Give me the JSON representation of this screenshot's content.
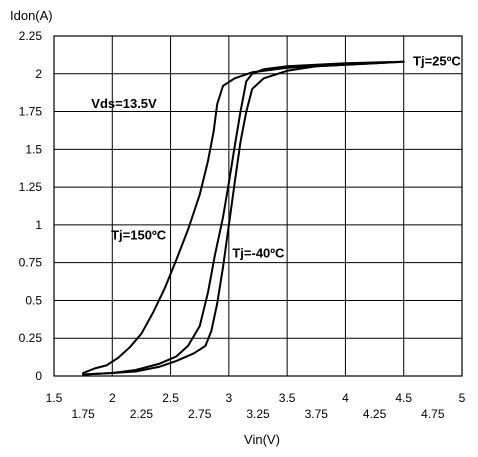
{
  "chart_data": {
    "type": "line",
    "xlabel": "Vin(V)",
    "ylabel": "Idon(A)",
    "xlim": [
      1.5,
      5
    ],
    "ylim": [
      0,
      2.25
    ],
    "x_ticks_upper": [
      "1.5",
      "2",
      "2.5",
      "3",
      "3.5",
      "4",
      "4.5",
      "5"
    ],
    "x_ticks_lower": [
      "1.75",
      "2.25",
      "2.75",
      "3.25",
      "3.75",
      "4.25",
      "4.75"
    ],
    "y_ticks": [
      "0",
      "0.25",
      "0.5",
      "0.75",
      "1",
      "1.25",
      "1.5",
      "1.75",
      "2",
      "2.25"
    ],
    "grid": true,
    "series": [
      {
        "name": "Tj=150ºC",
        "x": [
          1.75,
          1.85,
          1.95,
          2.05,
          2.15,
          2.25,
          2.35,
          2.45,
          2.55,
          2.65,
          2.75,
          2.82,
          2.87,
          2.9,
          2.95,
          3.05,
          3.2,
          3.5,
          4.0,
          4.5
        ],
        "y": [
          0.02,
          0.05,
          0.07,
          0.12,
          0.19,
          0.28,
          0.42,
          0.58,
          0.77,
          0.97,
          1.2,
          1.42,
          1.62,
          1.8,
          1.92,
          1.97,
          2.01,
          2.04,
          2.06,
          2.08
        ]
      },
      {
        "name": "Tj=25ºC",
        "x": [
          1.75,
          2.0,
          2.2,
          2.4,
          2.55,
          2.65,
          2.75,
          2.82,
          2.88,
          2.95,
          3.0,
          3.05,
          3.1,
          3.15,
          3.2,
          3.3,
          3.5,
          4.0,
          4.5
        ],
        "y": [
          0.01,
          0.02,
          0.04,
          0.08,
          0.13,
          0.2,
          0.33,
          0.55,
          0.8,
          1.05,
          1.28,
          1.52,
          1.75,
          1.95,
          2.0,
          2.03,
          2.05,
          2.07,
          2.08
        ]
      },
      {
        "name": "Tj=-40ºC",
        "x": [
          1.75,
          2.0,
          2.2,
          2.4,
          2.55,
          2.7,
          2.8,
          2.85,
          2.9,
          2.95,
          3.0,
          3.05,
          3.1,
          3.15,
          3.2,
          3.3,
          3.5,
          3.75,
          4.0,
          4.5
        ],
        "y": [
          0.01,
          0.02,
          0.03,
          0.06,
          0.1,
          0.15,
          0.2,
          0.3,
          0.48,
          0.72,
          1.0,
          1.28,
          1.55,
          1.75,
          1.9,
          1.97,
          2.02,
          2.05,
          2.06,
          2.08
        ]
      }
    ],
    "annotations": [
      {
        "text": "Vds=13.5V",
        "x": 1.82,
        "y": 1.8
      },
      {
        "text": "Tj=150ºC",
        "x": 1.99,
        "y": 0.93
      },
      {
        "text": "Tj=-40ºC",
        "x": 3.03,
        "y": 0.81
      },
      {
        "text": "Tj=25ºC",
        "x": 4.58,
        "y": 2.08
      }
    ]
  }
}
